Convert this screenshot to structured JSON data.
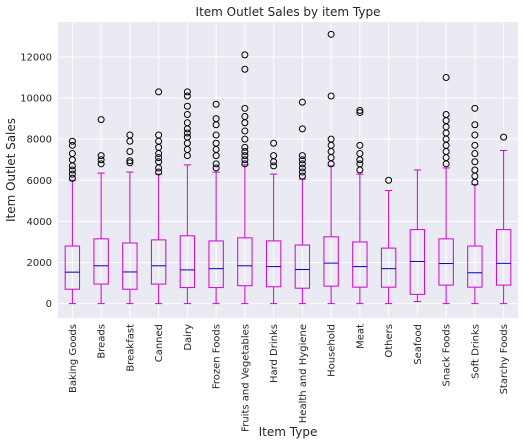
{
  "chart_data": {
    "type": "boxplot",
    "title": "Item Outlet Sales by item Type",
    "xlabel": "Item Type",
    "ylabel": "Item Outlet Sales",
    "ylim": [
      -700,
      13700
    ],
    "yticks": [
      0,
      2000,
      4000,
      6000,
      8000,
      10000,
      12000
    ],
    "grid": true,
    "background": "#eaeaf2",
    "box_color": "#d400d4",
    "median_color": "#0000cc",
    "categories": [
      "Baking Goods",
      "Breads",
      "Breakfast",
      "Canned",
      "Dairy",
      "Frozen Foods",
      "Fruits and Vegetables",
      "Hard Drinks",
      "Health and Hygiene",
      "Household",
      "Meat",
      "Others",
      "Seafood",
      "Snack Foods",
      "Soft Drinks",
      "Starchy Foods"
    ],
    "boxes": [
      {
        "whislo": 0,
        "q1": 700,
        "med": 1530,
        "q3": 2800,
        "whishi": 6000,
        "fliers": [
          6100,
          6300,
          6500,
          6700,
          7000,
          7300,
          7700,
          7900
        ]
      },
      {
        "whislo": 0,
        "q1": 950,
        "med": 1840,
        "q3": 3150,
        "whishi": 6350,
        "fliers": [
          6800,
          7000,
          7200,
          8950
        ]
      },
      {
        "whislo": 0,
        "q1": 700,
        "med": 1540,
        "q3": 2950,
        "whishi": 6400,
        "fliers": [
          6850,
          6950,
          7400,
          7900,
          8200
        ]
      },
      {
        "whislo": 0,
        "q1": 950,
        "med": 1840,
        "q3": 3100,
        "whishi": 6300,
        "fliers": [
          6400,
          6600,
          6900,
          7100,
          7300,
          7600,
          7900,
          8200,
          10300
        ]
      },
      {
        "whislo": 0,
        "q1": 780,
        "med": 1640,
        "q3": 3300,
        "whishi": 6750,
        "fliers": [
          7200,
          7500,
          7800,
          8100,
          8300,
          8500,
          8800,
          9200,
          9600,
          10100,
          10300
        ]
      },
      {
        "whislo": 0,
        "q1": 780,
        "med": 1700,
        "q3": 3050,
        "whishi": 6400,
        "fliers": [
          6600,
          6800,
          7200,
          7500,
          7800,
          8200,
          8700,
          9000,
          9700
        ]
      },
      {
        "whislo": 0,
        "q1": 870,
        "med": 1840,
        "q3": 3200,
        "whishi": 6750,
        "fliers": [
          6800,
          7000,
          7200,
          7400,
          7600,
          8000,
          8400,
          8800,
          9100,
          9500,
          11400,
          12100
        ]
      },
      {
        "whislo": 0,
        "q1": 820,
        "med": 1800,
        "q3": 3050,
        "whishi": 6300,
        "fliers": [
          6700,
          6900,
          7200,
          7800
        ]
      },
      {
        "whislo": 0,
        "q1": 750,
        "med": 1660,
        "q3": 2850,
        "whishi": 6050,
        "fliers": [
          6200,
          6400,
          6600,
          6800,
          7000,
          7200,
          8500,
          9800
        ]
      },
      {
        "whislo": 0,
        "q1": 850,
        "med": 1970,
        "q3": 3250,
        "whishi": 6700,
        "fliers": [
          6800,
          7100,
          7400,
          7700,
          8000,
          10100,
          13100
        ]
      },
      {
        "whislo": 0,
        "q1": 800,
        "med": 1800,
        "q3": 3000,
        "whishi": 6300,
        "fliers": [
          6500,
          6800,
          7000,
          7300,
          7700,
          9300,
          9400
        ]
      },
      {
        "whislo": 0,
        "q1": 800,
        "med": 1700,
        "q3": 2700,
        "whishi": 5500,
        "fliers": [
          6000
        ]
      },
      {
        "whislo": 100,
        "q1": 450,
        "med": 2050,
        "q3": 3600,
        "whishi": 6500,
        "fliers": []
      },
      {
        "whislo": 0,
        "q1": 900,
        "med": 1950,
        "q3": 3150,
        "whishi": 6600,
        "fliers": [
          6800,
          7100,
          7400,
          7700,
          8000,
          8300,
          8600,
          8900,
          9200,
          11000
        ]
      },
      {
        "whislo": 0,
        "q1": 800,
        "med": 1500,
        "q3": 2800,
        "whishi": 5800,
        "fliers": [
          5900,
          6200,
          6500,
          6900,
          7300,
          7700,
          8200,
          8700,
          9500
        ]
      },
      {
        "whislo": 0,
        "q1": 900,
        "med": 1960,
        "q3": 3600,
        "whishi": 7450,
        "fliers": [
          8100
        ]
      }
    ]
  }
}
